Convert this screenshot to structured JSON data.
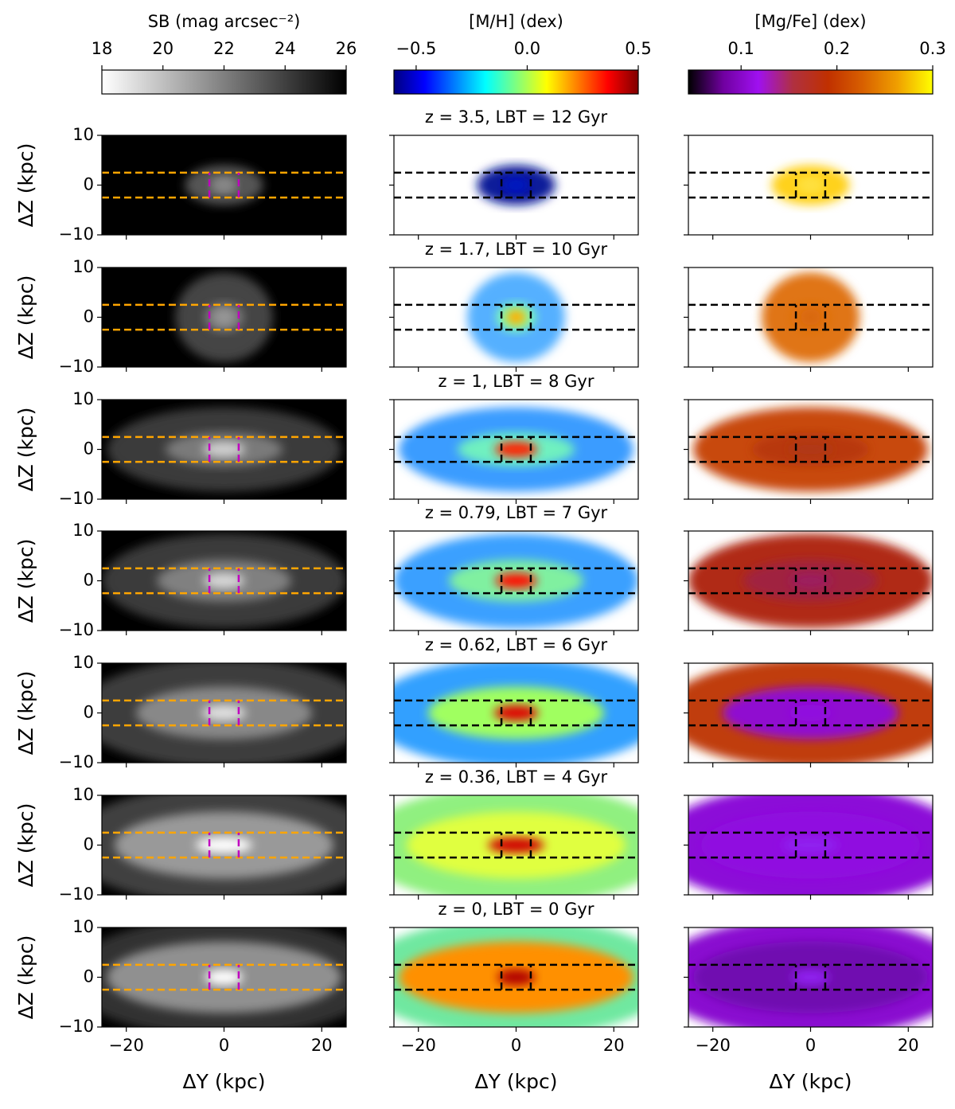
{
  "chart_data": {
    "type": "heatmap",
    "xlabel": "ΔY (kpc)",
    "ylabel": "ΔZ (kpc)",
    "xlim": [
      -25,
      25
    ],
    "xticks": [
      {
        "value": -20,
        "label": "−20"
      },
      0,
      20
    ],
    "ylim": [
      -10,
      10
    ],
    "yticks": [
      {
        "value": -10,
        "label": "−10"
      },
      0,
      10
    ],
    "z_band": [
      -2.5,
      2.5
    ],
    "y_band": [
      -3,
      3
    ],
    "columns": [
      {
        "colorbar_label": "SB (mag arcsec⁻²)",
        "clim": [
          18,
          26
        ],
        "cticks": [
          18,
          20,
          22,
          24,
          26
        ],
        "colormap": [
          "#ffffff",
          "#000000"
        ],
        "band_color": "#ffa500",
        "box_color": "#c000c0"
      },
      {
        "colorbar_label": "[M/H] (dex)",
        "clim": [
          -0.6,
          0.5
        ],
        "cticks": [
          {
            "value": -0.5,
            "label": "−0.5"
          },
          {
            "value": 0,
            "label": "0.0"
          },
          0.5
        ],
        "colormap": [
          "#00007f",
          "#0000ff",
          "#007fff",
          "#00ffff",
          "#7fff7f",
          "#ffff00",
          "#ff7f00",
          "#ff0000",
          "#7f0000"
        ],
        "band_color": "#000000",
        "box_color": "#000000"
      },
      {
        "colorbar_label": "[Mg/Fe] (dex)",
        "clim": [
          0.045,
          0.3
        ],
        "cticks": [
          0.1,
          0.2,
          0.3
        ],
        "colormap": [
          "#000000",
          "#7000a0",
          "#9f10f0",
          "#b03040",
          "#c03000",
          "#d86000",
          "#f0a000",
          "#ffff00"
        ],
        "band_color": "#000000",
        "box_color": "#000000"
      }
    ],
    "rows": [
      {
        "title": "z = 3.5, LBT = 12 Gyr"
      },
      {
        "title": "z = 1.7, LBT = 10 Gyr"
      },
      {
        "title": "z = 1, LBT = 8 Gyr"
      },
      {
        "title": "z = 0.79, LBT = 7 Gyr"
      },
      {
        "title": "z = 0.62, LBT = 6 Gyr"
      },
      {
        "title": "z = 0.36, LBT = 4 Gyr"
      },
      {
        "title": "z = 0, LBT = 0 Gyr"
      }
    ]
  }
}
